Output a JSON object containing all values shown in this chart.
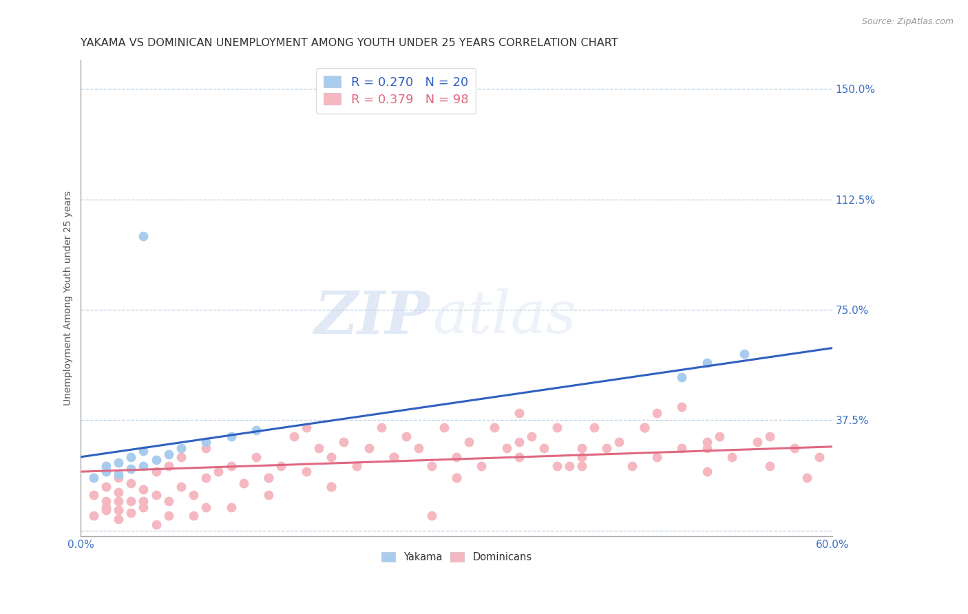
{
  "title": "YAKAMA VS DOMINICAN UNEMPLOYMENT AMONG YOUTH UNDER 25 YEARS CORRELATION CHART",
  "source": "Source: ZipAtlas.com",
  "ylabel": "Unemployment Among Youth under 25 years",
  "xlim": [
    0.0,
    0.6
  ],
  "ylim": [
    -0.02,
    1.6
  ],
  "yticks": [
    0.0,
    0.375,
    0.75,
    1.125,
    1.5
  ],
  "ytick_labels": [
    "",
    "37.5%",
    "75.0%",
    "112.5%",
    "150.0%"
  ],
  "xticks": [
    0.0,
    0.1,
    0.2,
    0.3,
    0.4,
    0.5,
    0.6
  ],
  "xtick_labels": [
    "0.0%",
    "",
    "",
    "",
    "",
    "",
    "60.0%"
  ],
  "grid_color": "#b8cfe0",
  "background_color": "#ffffff",
  "yakama_color": "#a8ccee",
  "dominican_color": "#f5b8c0",
  "yakama_line_color": "#3060c0",
  "dominican_line_color": "#e06880",
  "watermark_zip": "ZIP",
  "watermark_atlas": "atlas",
  "yakama_line_x0": 0.0,
  "yakama_line_y0": 0.25,
  "yakama_line_x1": 0.6,
  "yakama_line_y1": 0.62,
  "dominican_line_x0": 0.0,
  "dominican_line_y0": 0.2,
  "dominican_line_x1": 0.6,
  "dominican_line_y1": 0.285,
  "yakama_scatter_x": [
    0.01,
    0.02,
    0.02,
    0.03,
    0.03,
    0.04,
    0.04,
    0.05,
    0.05,
    0.06,
    0.07,
    0.08,
    0.1,
    0.12,
    0.14,
    0.48,
    0.5,
    0.53,
    0.05
  ],
  "yakama_scatter_y": [
    0.18,
    0.2,
    0.22,
    0.19,
    0.23,
    0.21,
    0.25,
    0.22,
    0.27,
    0.24,
    0.26,
    0.28,
    0.3,
    0.32,
    0.34,
    0.52,
    0.57,
    0.6,
    1.0
  ],
  "dominican_scatter_x": [
    0.01,
    0.01,
    0.02,
    0.02,
    0.02,
    0.03,
    0.03,
    0.03,
    0.04,
    0.04,
    0.05,
    0.05,
    0.06,
    0.06,
    0.07,
    0.07,
    0.08,
    0.08,
    0.09,
    0.1,
    0.1,
    0.11,
    0.12,
    0.13,
    0.14,
    0.15,
    0.16,
    0.17,
    0.18,
    0.18,
    0.19,
    0.2,
    0.21,
    0.22,
    0.23,
    0.24,
    0.25,
    0.26,
    0.27,
    0.28,
    0.29,
    0.3,
    0.31,
    0.32,
    0.33,
    0.34,
    0.35,
    0.36,
    0.37,
    0.38,
    0.39,
    0.4,
    0.41,
    0.43,
    0.44,
    0.45,
    0.46,
    0.48,
    0.5,
    0.51,
    0.52,
    0.54,
    0.55,
    0.57,
    0.58,
    0.59,
    0.4,
    0.45,
    0.5,
    0.35,
    0.42,
    0.48,
    0.38,
    0.3,
    0.25,
    0.2,
    0.15,
    0.12,
    0.09,
    0.06,
    0.04,
    0.03,
    0.02,
    0.55,
    0.5,
    0.45,
    0.4,
    0.35,
    0.3,
    0.25,
    0.2,
    0.15,
    0.1,
    0.07,
    0.05,
    0.03,
    0.46,
    0.28
  ],
  "dominican_scatter_y": [
    0.05,
    0.12,
    0.08,
    0.15,
    0.1,
    0.07,
    0.13,
    0.18,
    0.1,
    0.16,
    0.08,
    0.14,
    0.12,
    0.2,
    0.1,
    0.22,
    0.15,
    0.25,
    0.12,
    0.18,
    0.28,
    0.2,
    0.22,
    0.16,
    0.25,
    0.18,
    0.22,
    0.32,
    0.2,
    0.35,
    0.28,
    0.25,
    0.3,
    0.22,
    0.28,
    0.35,
    0.25,
    0.32,
    0.28,
    0.22,
    0.35,
    0.25,
    0.3,
    0.22,
    0.35,
    0.28,
    0.25,
    0.32,
    0.28,
    0.35,
    0.22,
    0.28,
    0.35,
    0.3,
    0.22,
    0.35,
    0.25,
    0.28,
    0.2,
    0.32,
    0.25,
    0.3,
    0.22,
    0.28,
    0.18,
    0.25,
    0.25,
    0.35,
    0.3,
    0.4,
    0.28,
    0.42,
    0.22,
    0.18,
    0.25,
    0.15,
    0.18,
    0.08,
    0.05,
    0.02,
    0.06,
    0.1,
    0.07,
    0.32,
    0.28,
    0.35,
    0.22,
    0.3,
    0.18,
    0.25,
    0.15,
    0.12,
    0.08,
    0.05,
    0.1,
    0.04,
    0.4,
    0.05
  ],
  "title_fontsize": 11.5,
  "axis_tick_fontsize": 11,
  "ylabel_fontsize": 10,
  "legend_fontsize": 13,
  "source_fontsize": 9
}
